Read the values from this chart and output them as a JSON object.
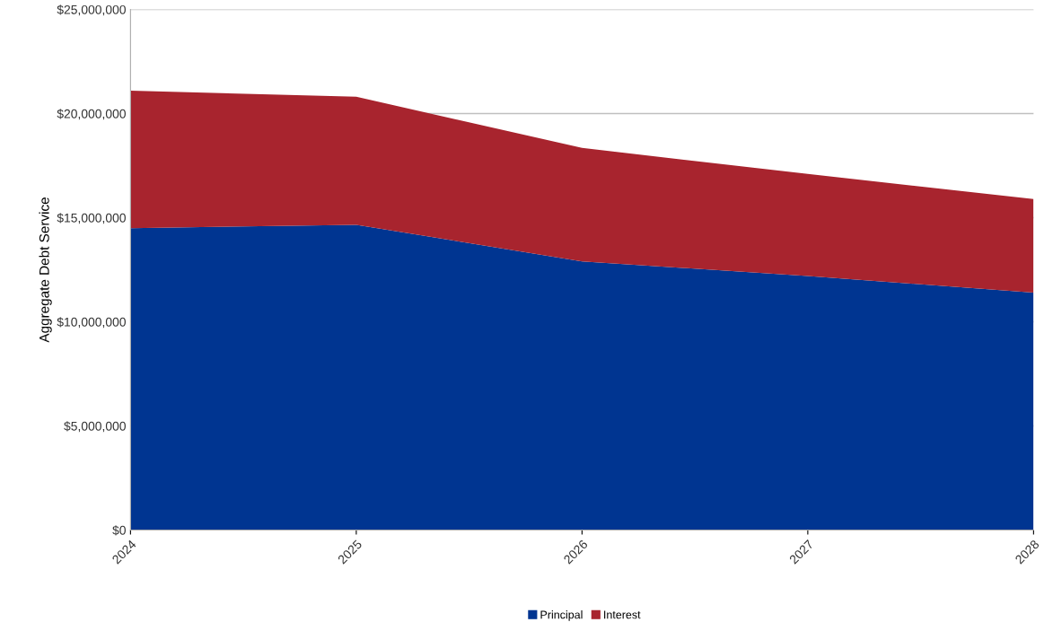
{
  "chart_data": {
    "type": "area",
    "stacked": true,
    "ylabel": "Aggregate Debt Service",
    "categories": [
      "2024",
      "2025",
      "2026",
      "2027",
      "2028"
    ],
    "series": [
      {
        "name": "Principal",
        "color": "#003591",
        "values": [
          14500000,
          14660000,
          12900000,
          12200000,
          11400000
        ]
      },
      {
        "name": "Interest",
        "color": "#a8242e",
        "values": [
          6600000,
          6150000,
          5450000,
          4900000,
          4500000
        ]
      }
    ],
    "ylim": [
      0,
      25000000
    ],
    "yticks": [
      {
        "value": 0,
        "label": "$0"
      },
      {
        "value": 5000000,
        "label": "$5,000,000"
      },
      {
        "value": 10000000,
        "label": "$10,000,000"
      },
      {
        "value": 15000000,
        "label": "$15,000,000"
      },
      {
        "value": 20000000,
        "label": "$20,000,000"
      },
      {
        "value": 25000000,
        "label": "$25,000,000"
      }
    ],
    "grid": "y",
    "legend": "bottom"
  }
}
